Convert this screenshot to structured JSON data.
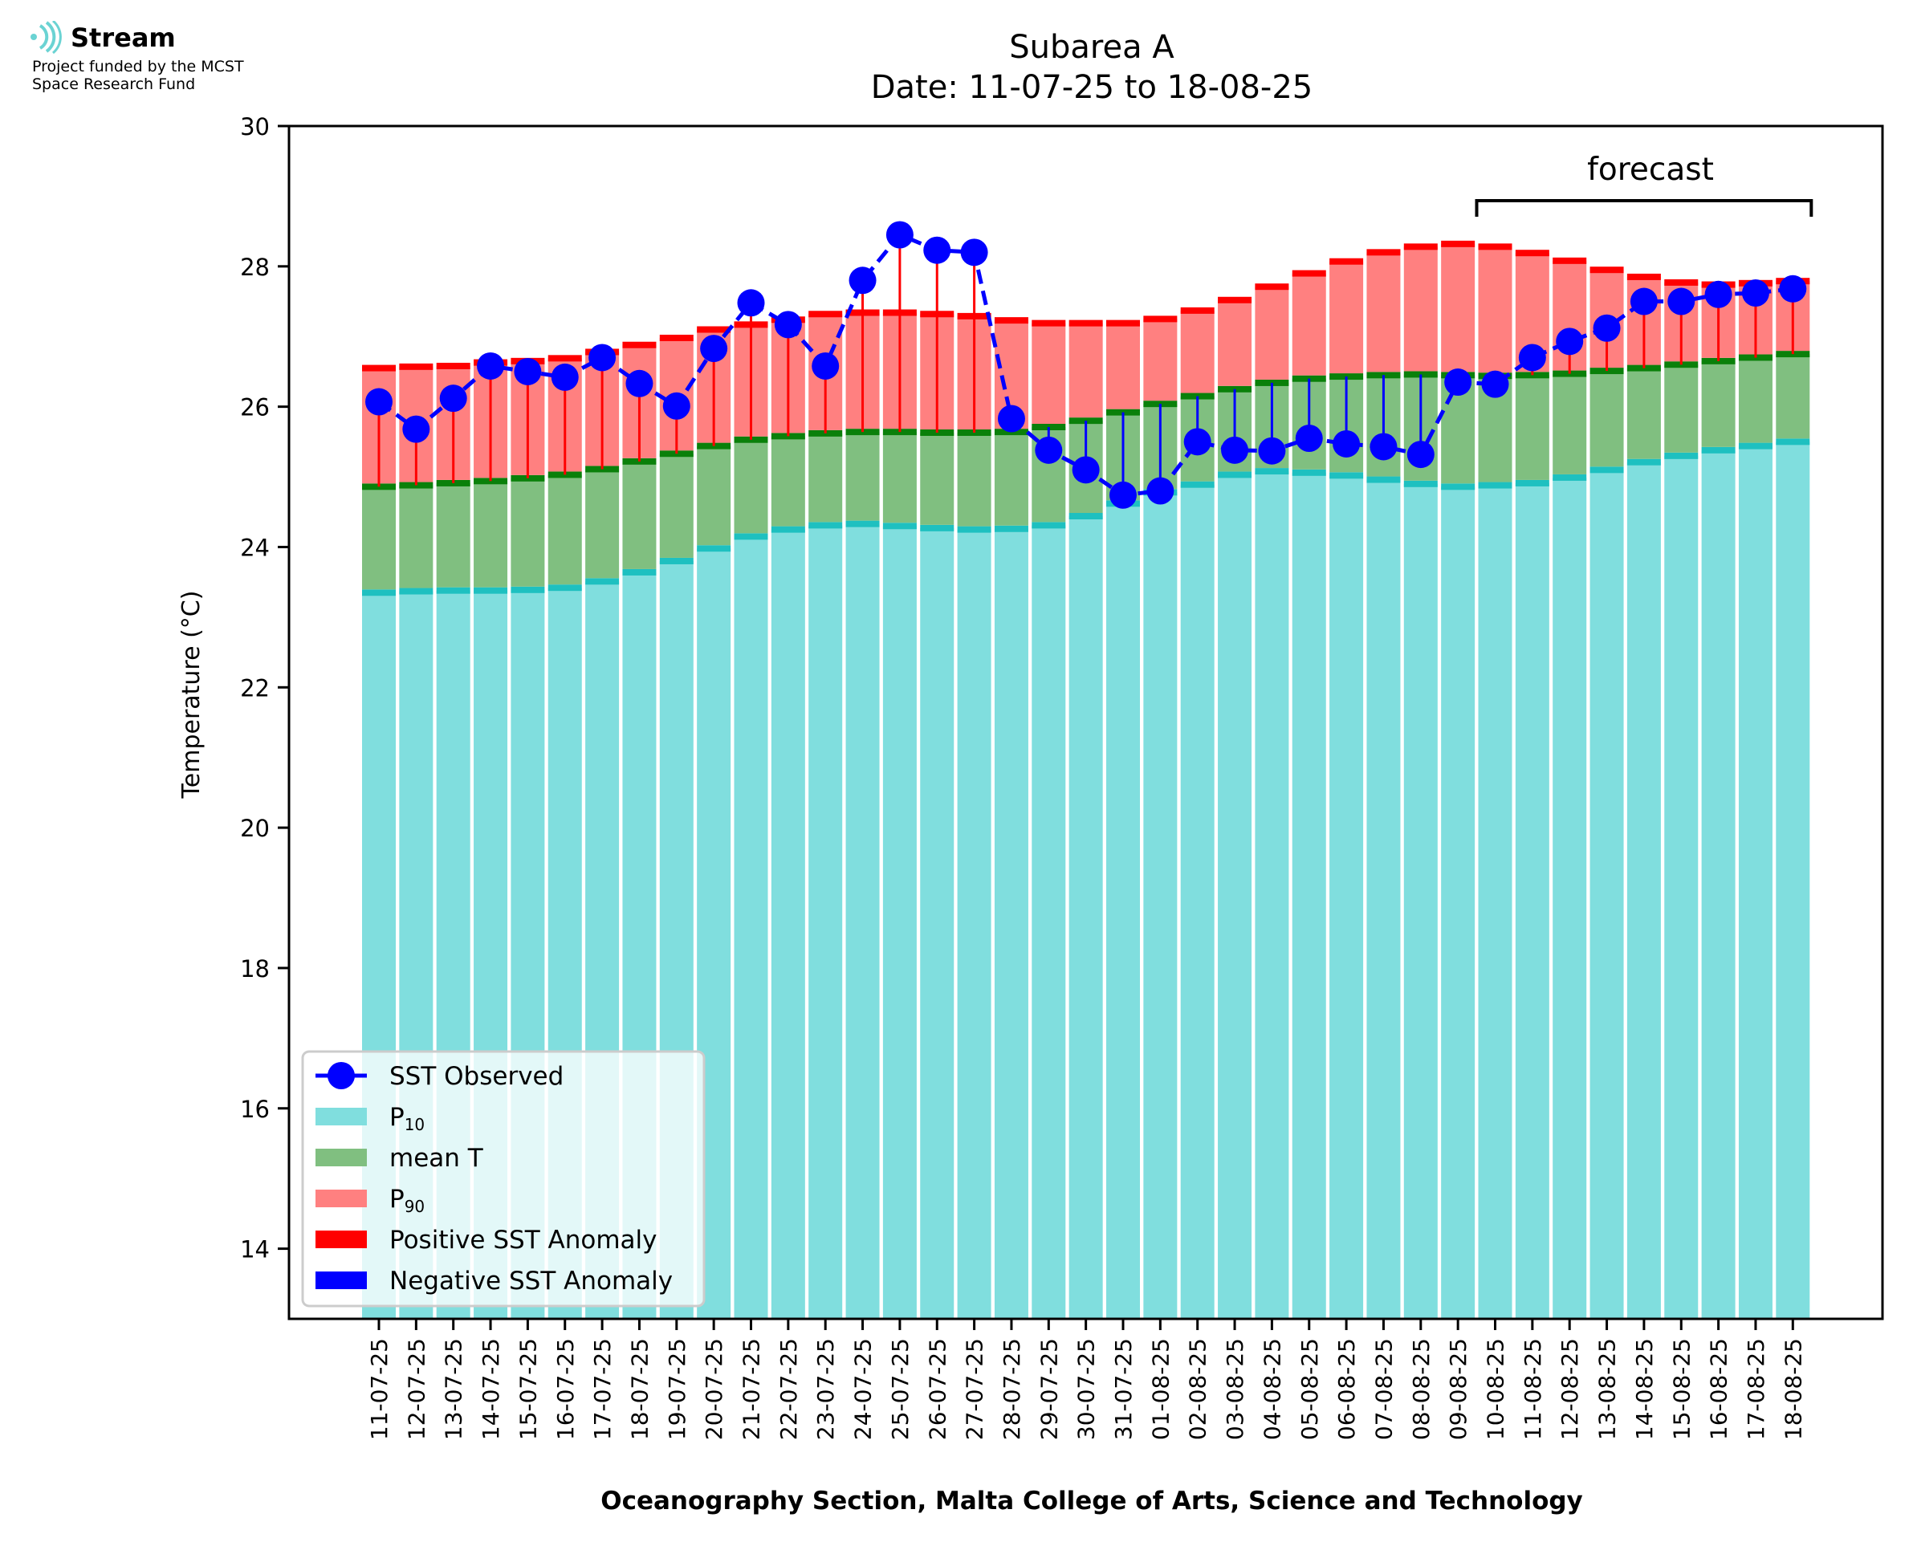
{
  "logo": {
    "brand": "Stream",
    "line1": "Project funded by the MCST",
    "line2": "Space Research Fund"
  },
  "chart_data": {
    "type": "bar",
    "title": "Subarea A",
    "subtitle": "Date: 11-07-25 to 18-08-25",
    "xlabel": "Oceanography Section, Malta College of Arts, Science and Technology",
    "ylabel": "Temperature (°C)",
    "ylim": [
      13,
      30
    ],
    "yticks": [
      14,
      16,
      18,
      20,
      22,
      24,
      26,
      28,
      30
    ],
    "forecast_label": "forecast",
    "forecast_range": [
      "10-08-25",
      "18-08-25"
    ],
    "legend_position": "lower-left",
    "legend": [
      "SST Observed",
      "P10",
      "mean T",
      "P90",
      "Positive SST Anomaly",
      "Negative SST Anomaly"
    ],
    "colors": {
      "p10": "#80dede",
      "p10_edge": "#1ec0c0",
      "mean": "#80bf80",
      "mean_edge": "#0a800a",
      "p90": "#ff8080",
      "p90_edge": "#ff0000",
      "positive_anomaly": "#ff0000",
      "negative_anomaly": "#0000ff",
      "observed": "#0000ff"
    },
    "categories": [
      "11-07-25",
      "12-07-25",
      "13-07-25",
      "14-07-25",
      "15-07-25",
      "16-07-25",
      "17-07-25",
      "18-07-25",
      "19-07-25",
      "20-07-25",
      "21-07-25",
      "22-07-25",
      "23-07-25",
      "24-07-25",
      "25-07-25",
      "26-07-25",
      "27-07-25",
      "28-07-25",
      "29-07-25",
      "30-07-25",
      "31-07-25",
      "01-08-25",
      "02-08-25",
      "03-08-25",
      "04-08-25",
      "05-08-25",
      "06-08-25",
      "07-08-25",
      "08-08-25",
      "09-08-25",
      "10-08-25",
      "11-08-25",
      "12-08-25",
      "13-08-25",
      "14-08-25",
      "15-08-25",
      "16-08-25",
      "17-08-25",
      "18-08-25"
    ],
    "series": [
      {
        "name": "P10",
        "values": [
          23.35,
          23.37,
          23.38,
          23.38,
          23.39,
          23.42,
          23.51,
          23.64,
          23.8,
          23.98,
          24.15,
          24.25,
          24.31,
          24.33,
          24.3,
          24.27,
          24.25,
          24.26,
          24.31,
          24.44,
          24.62,
          24.78,
          24.89,
          25.03,
          25.08,
          25.06,
          25.02,
          24.96,
          24.9,
          24.86,
          24.88,
          24.91,
          24.99,
          25.1,
          25.21,
          25.3,
          25.38,
          25.44,
          25.5
        ]
      },
      {
        "name": "mean T",
        "values": [
          24.86,
          24.88,
          24.91,
          24.94,
          24.98,
          25.03,
          25.11,
          25.22,
          25.33,
          25.44,
          25.53,
          25.58,
          25.62,
          25.64,
          25.64,
          25.63,
          25.63,
          25.64,
          25.71,
          25.8,
          25.92,
          26.04,
          26.15,
          26.25,
          26.34,
          26.4,
          26.43,
          26.45,
          26.46,
          26.45,
          26.44,
          26.45,
          26.47,
          26.51,
          26.55,
          26.6,
          26.65,
          26.7,
          26.75
        ]
      },
      {
        "name": "P90",
        "values": [
          26.55,
          26.57,
          26.58,
          26.63,
          26.65,
          26.69,
          26.78,
          26.88,
          26.98,
          27.1,
          27.17,
          27.24,
          27.32,
          27.34,
          27.34,
          27.32,
          27.29,
          27.23,
          27.19,
          27.19,
          27.19,
          27.25,
          27.37,
          27.52,
          27.71,
          27.9,
          28.07,
          28.2,
          28.28,
          28.32,
          28.28,
          28.19,
          28.08,
          27.95,
          27.85,
          27.77,
          27.74,
          27.76,
          27.79
        ]
      },
      {
        "name": "SST Observed",
        "values": [
          26.07,
          25.68,
          26.12,
          26.58,
          26.5,
          26.42,
          26.7,
          26.33,
          26.01,
          26.83,
          27.48,
          27.17,
          26.58,
          27.8,
          28.45,
          28.23,
          28.2,
          25.83,
          25.38,
          25.1,
          24.74,
          24.8,
          25.5,
          25.38,
          25.37,
          25.55,
          25.47,
          25.43,
          25.32,
          26.35,
          26.32,
          26.7,
          26.93,
          27.12,
          27.5,
          27.5,
          27.6,
          27.62,
          27.68
        ]
      }
    ]
  }
}
